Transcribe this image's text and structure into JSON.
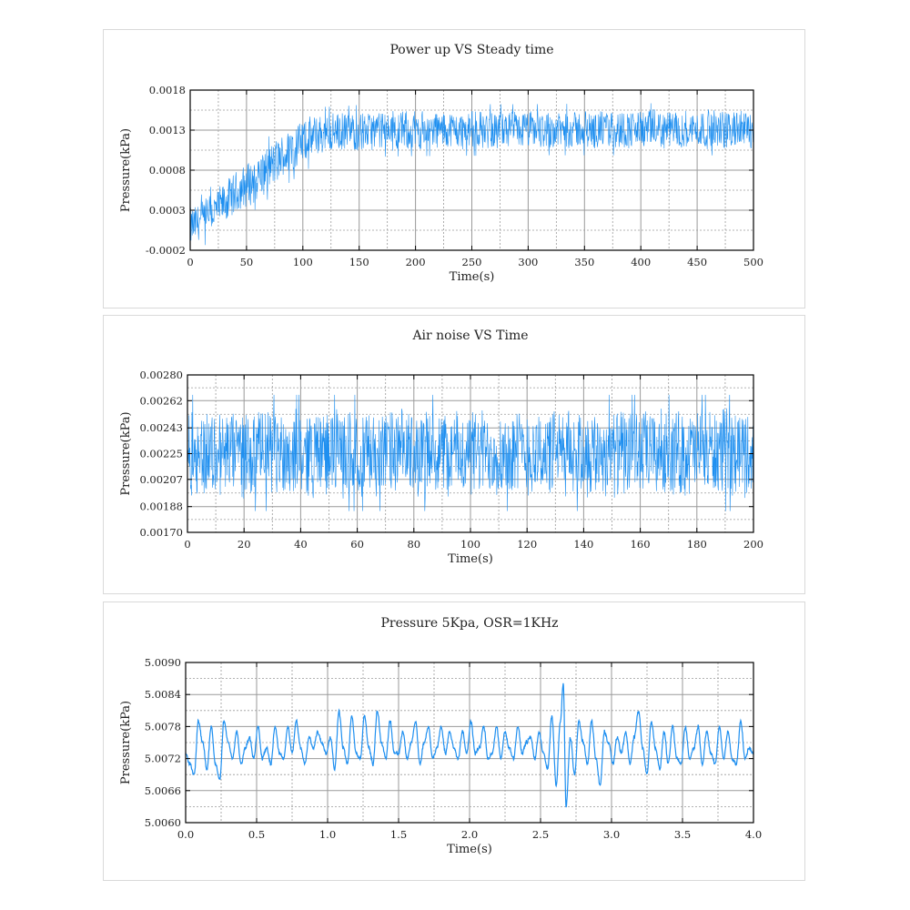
{
  "chart_data": [
    {
      "type": "line",
      "title": "Power up VS Steady time",
      "xlabel": "Time(s)",
      "ylabel": "Pressure(kPa)",
      "xlim": [
        0,
        500
      ],
      "ylim": [
        -0.0002,
        0.0018
      ],
      "xticks": [
        0,
        50,
        100,
        150,
        200,
        250,
        300,
        350,
        400,
        450,
        500
      ],
      "xtick_labels": [
        "0",
        "50",
        "100",
        "150",
        "200",
        "250",
        "300",
        "350",
        "400",
        "450",
        "500"
      ],
      "yticks": [
        -0.0002,
        0.0003,
        0.0008,
        0.0013,
        0.0018
      ],
      "ytick_labels": [
        "-0.0002",
        "0.0003",
        "0.0008",
        "0.0013",
        "0.0018"
      ],
      "grid": true,
      "color": "#1e8ff0",
      "series": [
        {
          "envelope": [
            [
              0,
              -0.00018,
              0.00035
            ],
            [
              10,
              -0.0001,
              0.00043
            ],
            [
              25,
              5e-05,
              0.0006
            ],
            [
              50,
              0.0003,
              0.00092
            ],
            [
              75,
              0.00058,
              0.0012
            ],
            [
              100,
              0.00085,
              0.00147
            ],
            [
              115,
              0.00097,
              0.00152
            ],
            [
              130,
              0.00101,
              0.00153
            ],
            [
              150,
              0.00103,
              0.00155
            ],
            [
              200,
              0.00104,
              0.00156
            ],
            [
              300,
              0.00105,
              0.00156
            ],
            [
              400,
              0.00105,
              0.00157
            ],
            [
              500,
              0.00105,
              0.00157
            ]
          ]
        }
      ]
    },
    {
      "type": "line",
      "title": "Air noise VS Time",
      "xlabel": "Time(s)",
      "ylabel": "Pressure(kPa)",
      "xlim": [
        0,
        200
      ],
      "ylim": [
        0.0017,
        0.0028
      ],
      "xticks": [
        0,
        20,
        40,
        60,
        80,
        100,
        120,
        140,
        160,
        180,
        200
      ],
      "xtick_labels": [
        "0",
        "20",
        "40",
        "60",
        "80",
        "100",
        "120",
        "140",
        "160",
        "180",
        "200"
      ],
      "yticks": [
        0.0017,
        0.00188,
        0.00207,
        0.00225,
        0.00243,
        0.00262,
        0.0028
      ],
      "ytick_labels": [
        "0.00170",
        "0.00188",
        "0.00207",
        "0.00225",
        "0.00243",
        "0.00262",
        "0.00280"
      ],
      "grid": true,
      "color": "#1e8ff0",
      "series": [
        {
          "envelope": [
            [
              0,
              0.00193,
              0.00258
            ],
            [
              50,
              0.00193,
              0.00258
            ],
            [
              100,
              0.00193,
              0.00258
            ],
            [
              150,
              0.00193,
              0.00258
            ],
            [
              200,
              0.00193,
              0.00258
            ]
          ]
        }
      ]
    },
    {
      "type": "line",
      "title": "Pressure 5Kpa, OSR=1KHz",
      "xlabel": "Time(s)",
      "ylabel": "Pressure(kPa)",
      "xlim": [
        0,
        4
      ],
      "ylim": [
        5.006,
        5.009
      ],
      "xticks": [
        0,
        0.5,
        1.0,
        1.5,
        2.0,
        2.5,
        3.0,
        3.5,
        4.0
      ],
      "xtick_labels": [
        "0.0",
        "0.5",
        "1.0",
        "1.5",
        "2.0",
        "2.5",
        "3.0",
        "3.5",
        "4.0"
      ],
      "yticks": [
        5.006,
        5.0066,
        5.0072,
        5.0078,
        5.0084,
        5.009
      ],
      "ytick_labels": [
        "5.0060",
        "5.0066",
        "5.0072",
        "5.0078",
        "5.0084",
        "5.0090"
      ],
      "grid": true,
      "color": "#1e8ff0",
      "series": [
        {
          "points": [
            [
              0.0,
              5.0073
            ],
            [
              0.03,
              5.0071
            ],
            [
              0.06,
              5.0069
            ],
            [
              0.09,
              5.0079
            ],
            [
              0.12,
              5.0075
            ],
            [
              0.15,
              5.007
            ],
            [
              0.18,
              5.0078
            ],
            [
              0.21,
              5.0071
            ],
            [
              0.24,
              5.0068
            ],
            [
              0.27,
              5.0079
            ],
            [
              0.3,
              5.0075
            ],
            [
              0.33,
              5.0072
            ],
            [
              0.36,
              5.0077
            ],
            [
              0.39,
              5.0071
            ],
            [
              0.42,
              5.0074
            ],
            [
              0.45,
              5.0076
            ],
            [
              0.48,
              5.0072
            ],
            [
              0.51,
              5.0078
            ],
            [
              0.54,
              5.0072
            ],
            [
              0.57,
              5.0074
            ],
            [
              0.6,
              5.0071
            ],
            [
              0.63,
              5.0078
            ],
            [
              0.66,
              5.0073
            ],
            [
              0.69,
              5.0072
            ],
            [
              0.72,
              5.0078
            ],
            [
              0.75,
              5.0073
            ],
            [
              0.78,
              5.0079
            ],
            [
              0.81,
              5.0074
            ],
            [
              0.84,
              5.0071
            ],
            [
              0.87,
              5.0076
            ],
            [
              0.9,
              5.0074
            ],
            [
              0.93,
              5.0077
            ],
            [
              0.96,
              5.0075
            ],
            [
              0.99,
              5.0073
            ],
            [
              1.02,
              5.0076
            ],
            [
              1.05,
              5.007
            ],
            [
              1.08,
              5.0081
            ],
            [
              1.11,
              5.0074
            ],
            [
              1.14,
              5.0071
            ],
            [
              1.17,
              5.008
            ],
            [
              1.2,
              5.0073
            ],
            [
              1.23,
              5.0072
            ],
            [
              1.26,
              5.008
            ],
            [
              1.29,
              5.0074
            ],
            [
              1.32,
              5.0071
            ],
            [
              1.35,
              5.0081
            ],
            [
              1.38,
              5.0075
            ],
            [
              1.41,
              5.0072
            ],
            [
              1.44,
              5.0079
            ],
            [
              1.47,
              5.0073
            ],
            [
              1.5,
              5.0073
            ],
            [
              1.53,
              5.0077
            ],
            [
              1.56,
              5.0072
            ],
            [
              1.59,
              5.0075
            ],
            [
              1.62,
              5.0079
            ],
            [
              1.65,
              5.0071
            ],
            [
              1.68,
              5.0075
            ],
            [
              1.71,
              5.0078
            ],
            [
              1.74,
              5.0072
            ],
            [
              1.77,
              5.0074
            ],
            [
              1.8,
              5.0078
            ],
            [
              1.83,
              5.0073
            ],
            [
              1.86,
              5.0077
            ],
            [
              1.89,
              5.0074
            ],
            [
              1.92,
              5.0072
            ],
            [
              1.95,
              5.0077
            ],
            [
              1.98,
              5.0073
            ],
            [
              2.01,
              5.0079
            ],
            [
              2.04,
              5.0073
            ],
            [
              2.07,
              5.0074
            ],
            [
              2.1,
              5.0078
            ],
            [
              2.13,
              5.0072
            ],
            [
              2.16,
              5.0073
            ],
            [
              2.19,
              5.0078
            ],
            [
              2.22,
              5.0072
            ],
            [
              2.25,
              5.0077
            ],
            [
              2.28,
              5.0074
            ],
            [
              2.31,
              5.0072
            ],
            [
              2.34,
              5.0078
            ],
            [
              2.37,
              5.0073
            ],
            [
              2.4,
              5.0075
            ],
            [
              2.43,
              5.0076
            ],
            [
              2.46,
              5.0072
            ],
            [
              2.49,
              5.0077
            ],
            [
              2.52,
              5.0073
            ],
            [
              2.55,
              5.007
            ],
            [
              2.58,
              5.008
            ],
            [
              2.61,
              5.0067
            ],
            [
              2.64,
              5.0079
            ],
            [
              2.66,
              5.0086
            ],
            [
              2.68,
              5.0063
            ],
            [
              2.71,
              5.0076
            ],
            [
              2.74,
              5.0069
            ],
            [
              2.77,
              5.0079
            ],
            [
              2.8,
              5.0075
            ],
            [
              2.83,
              5.0071
            ],
            [
              2.86,
              5.0079
            ],
            [
              2.89,
              5.0072
            ],
            [
              2.92,
              5.0067
            ],
            [
              2.95,
              5.0077
            ],
            [
              2.98,
              5.0075
            ],
            [
              3.01,
              5.0071
            ],
            [
              3.04,
              5.0076
            ],
            [
              3.07,
              5.0073
            ],
            [
              3.1,
              5.0077
            ],
            [
              3.13,
              5.0071
            ],
            [
              3.16,
              5.0076
            ],
            [
              3.19,
              5.0081
            ],
            [
              3.22,
              5.0074
            ],
            [
              3.25,
              5.0069
            ],
            [
              3.28,
              5.0079
            ],
            [
              3.31,
              5.0074
            ],
            [
              3.34,
              5.007
            ],
            [
              3.37,
              5.0077
            ],
            [
              3.4,
              5.0071
            ],
            [
              3.43,
              5.0078
            ],
            [
              3.46,
              5.0072
            ],
            [
              3.49,
              5.0071
            ],
            [
              3.52,
              5.0078
            ],
            [
              3.55,
              5.0072
            ],
            [
              3.58,
              5.0074
            ],
            [
              3.61,
              5.0078
            ],
            [
              3.64,
              5.0071
            ],
            [
              3.67,
              5.0077
            ],
            [
              3.7,
              5.0073
            ],
            [
              3.73,
              5.0071
            ],
            [
              3.76,
              5.0078
            ],
            [
              3.79,
              5.0072
            ],
            [
              3.82,
              5.0077
            ],
            [
              3.85,
              5.0072
            ],
            [
              3.88,
              5.0071
            ],
            [
              3.91,
              5.0079
            ],
            [
              3.94,
              5.0072
            ],
            [
              3.97,
              5.0074
            ],
            [
              4.0,
              5.0073
            ]
          ]
        }
      ]
    }
  ]
}
